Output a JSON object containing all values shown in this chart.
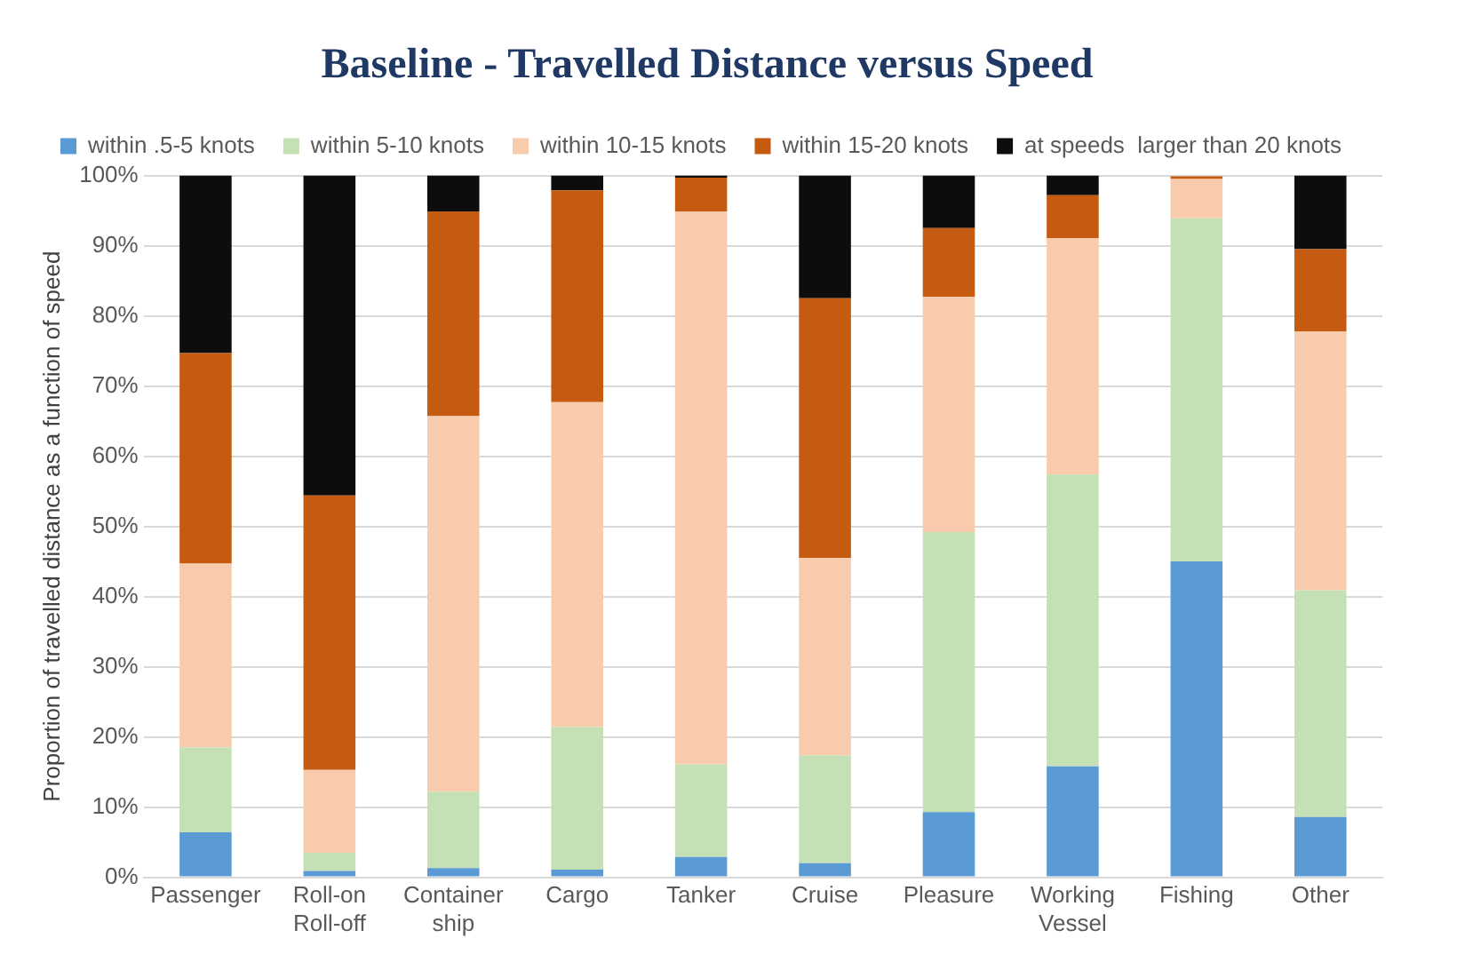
{
  "chart_data": {
    "type": "bar",
    "title": "Baseline - Travelled Distance versus Speed",
    "ylabel": "Proportion of travelled distance as a function of speed",
    "categories": [
      "Passenger",
      "Roll-on Roll-off",
      "Container ship",
      "Cargo",
      "Tanker",
      "Cruise",
      "Pleasure",
      "Working Vessel",
      "Fishing",
      "Other"
    ],
    "series": [
      {
        "name": "within .5-5 knots",
        "color": "#5b9bd5",
        "values": [
          6.4,
          0.9,
          1.3,
          1.1,
          2.9,
          2.0,
          9.3,
          15.8,
          45.0,
          8.6
        ]
      },
      {
        "name": "within 5-10 knots",
        "color": "#c5e0b4",
        "values": [
          12.1,
          2.6,
          10.9,
          20.3,
          13.2,
          15.4,
          39.9,
          41.6,
          48.9,
          32.3
        ]
      },
      {
        "name": "within 10-15 knots",
        "color": "#f8cbad",
        "values": [
          26.2,
          11.8,
          53.5,
          46.3,
          78.8,
          28.1,
          33.5,
          33.7,
          5.6,
          36.9
        ]
      },
      {
        "name": "within 15-20 knots",
        "color": "#c55a11",
        "values": [
          30.0,
          39.1,
          29.2,
          30.2,
          4.8,
          37.0,
          9.8,
          6.1,
          0.4,
          11.7
        ]
      },
      {
        "name": "at speeds  larger than 20 knots",
        "color": "#0d0d0d",
        "values": [
          25.3,
          45.6,
          5.1,
          2.1,
          0.3,
          17.5,
          7.5,
          2.8,
          null,
          10.5
        ]
      }
    ],
    "stacked": true,
    "ylim": [
      0,
      100
    ],
    "yticks": [
      {
        "value": 0,
        "label": "0%"
      },
      {
        "value": 10,
        "label": "10%"
      },
      {
        "value": 20,
        "label": "20%"
      },
      {
        "value": 30,
        "label": "30%"
      },
      {
        "value": 40,
        "label": "40%"
      },
      {
        "value": 50,
        "label": "50%"
      },
      {
        "value": 60,
        "label": "60%"
      },
      {
        "value": 70,
        "label": "70%"
      },
      {
        "value": 80,
        "label": "80%"
      },
      {
        "value": 90,
        "label": "90%"
      },
      {
        "value": 100,
        "label": "100%"
      }
    ],
    "grid": "y",
    "legend": "top"
  }
}
